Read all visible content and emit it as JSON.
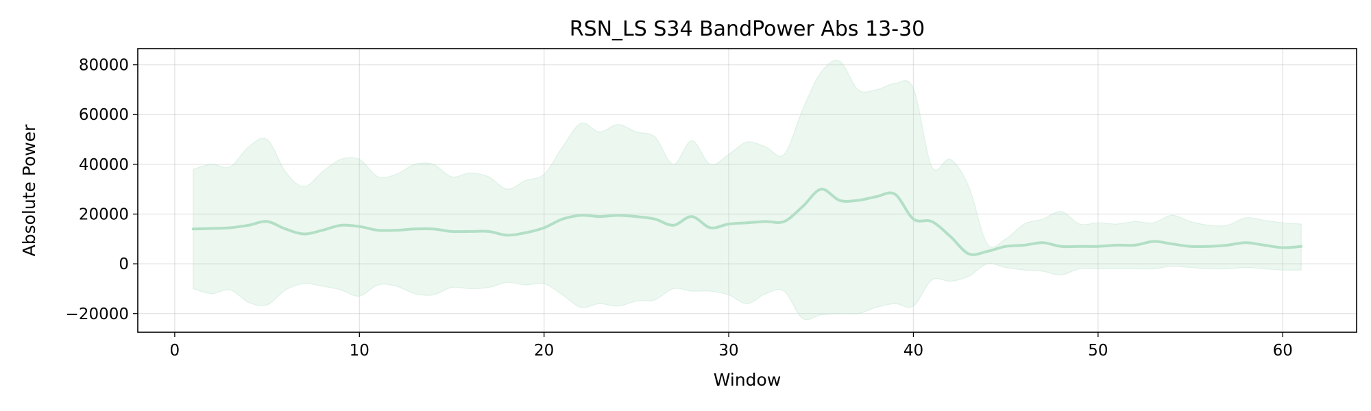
{
  "chart_data": {
    "type": "area",
    "title": "RSN_LS S34 BandPower Abs 13-30",
    "xlabel": "Window",
    "ylabel": "Absolute Power",
    "xlim": [
      -2,
      64
    ],
    "ylim": [
      -27500,
      86500
    ],
    "xticks": [
      0,
      10,
      20,
      30,
      40,
      50,
      60
    ],
    "xtick_labels": [
      "0",
      "10",
      "20",
      "30",
      "40",
      "50",
      "60"
    ],
    "yticks": [
      -20000,
      0,
      20000,
      40000,
      60000,
      80000
    ],
    "ytick_labels": [
      "−20000",
      "0",
      "20000",
      "40000",
      "60000",
      "80000"
    ],
    "grid": true,
    "colors": {
      "line": "#b2dfc5",
      "band": "#b2dfc5"
    },
    "series": [
      {
        "x": [
          1,
          2,
          3,
          4,
          5,
          6,
          7,
          8,
          9,
          10,
          11,
          12,
          13,
          14,
          15,
          16,
          17,
          18,
          19,
          20,
          21,
          22,
          23,
          24,
          25,
          26,
          27,
          28,
          29,
          30,
          31,
          32,
          33,
          34,
          35,
          36,
          37,
          38,
          39,
          40,
          41,
          42,
          43,
          44,
          45,
          46,
          47,
          48,
          49,
          50,
          51,
          52,
          53,
          54,
          55,
          56,
          57,
          58,
          59,
          60,
          61
        ],
        "mean": [
          14000,
          14200,
          14500,
          15500,
          17000,
          14000,
          12000,
          13500,
          15500,
          15000,
          13500,
          13500,
          14000,
          14000,
          13000,
          13000,
          13000,
          11500,
          12500,
          14500,
          18000,
          19500,
          19000,
          19500,
          19000,
          18000,
          15500,
          19000,
          14500,
          16000,
          16500,
          17000,
          17000,
          23000,
          30000,
          25500,
          25500,
          27000,
          28000,
          18000,
          17000,
          11000,
          4000,
          5000,
          7000,
          7500,
          8500,
          7000,
          7000,
          7000,
          7500,
          7500,
          9000,
          8000,
          7000,
          7000,
          7500,
          8500,
          7500,
          6500,
          7000
        ],
        "upper": [
          38000,
          40000,
          39000,
          47000,
          50000,
          37000,
          31000,
          37000,
          42000,
          42000,
          35000,
          36000,
          40000,
          40000,
          35000,
          36500,
          35000,
          30000,
          33500,
          36000,
          47000,
          56500,
          53000,
          56000,
          53000,
          51000,
          40000,
          49500,
          40000,
          44000,
          49000,
          47000,
          44000,
          62000,
          77000,
          81500,
          70000,
          70000,
          72500,
          70500,
          39000,
          42000,
          31000,
          8000,
          10000,
          16000,
          18000,
          21000,
          16000,
          16500,
          16000,
          17000,
          16500,
          19500,
          17000,
          15500,
          15500,
          18500,
          17500,
          16500,
          16000
        ],
        "lower": [
          -10000,
          -12000,
          -10500,
          -15500,
          -16500,
          -10500,
          -8000,
          -9000,
          -10500,
          -13000,
          -8500,
          -9000,
          -12000,
          -12500,
          -9500,
          -10000,
          -9500,
          -7500,
          -8500,
          -8000,
          -12500,
          -17500,
          -16000,
          -17000,
          -15000,
          -14500,
          -10000,
          -11000,
          -11000,
          -12500,
          -16000,
          -12000,
          -11000,
          -22000,
          -20500,
          -20000,
          -20000,
          -17500,
          -16000,
          -17000,
          -6500,
          -7000,
          -5000,
          0,
          -1500,
          -2500,
          -3000,
          -4500,
          -2000,
          -2000,
          -2000,
          -2000,
          -2000,
          -1000,
          -1500,
          -2000,
          -2000,
          -1500,
          -2000,
          -2500,
          -2500
        ]
      }
    ]
  }
}
